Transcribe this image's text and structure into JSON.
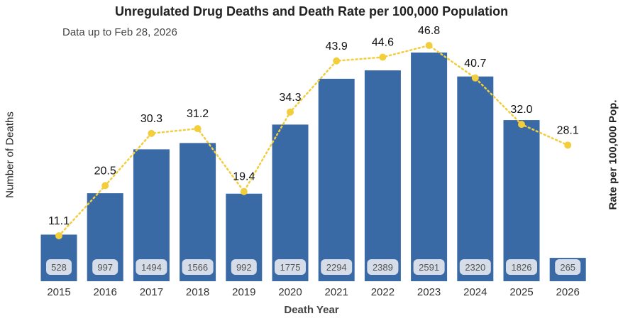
{
  "chart_data": {
    "type": "bar",
    "title": "Unregulated Drug Deaths and Death Rate per 100,000 Population",
    "subtitle": "Data up to Feb 28, 2026",
    "xlabel": "Death Year",
    "ylabel": "Number of Deaths",
    "y2label": "Rate per 100,000 Pop.",
    "categories": [
      "2015",
      "2016",
      "2017",
      "2018",
      "2019",
      "2020",
      "2021",
      "2022",
      "2023",
      "2024",
      "2025",
      "2026"
    ],
    "series": [
      {
        "name": "Number of Deaths",
        "type": "bar",
        "color": "#3a6aa5",
        "values": [
          528,
          997,
          1494,
          1566,
          992,
          1775,
          2294,
          2389,
          2591,
          2320,
          1826,
          265
        ]
      },
      {
        "name": "Rate per 100,000 Pop.",
        "type": "line",
        "color": "#f2cd3c",
        "style": "dotted",
        "values": [
          11.1,
          20.5,
          30.3,
          31.2,
          19.4,
          34.3,
          43.9,
          44.6,
          46.8,
          40.7,
          32.0,
          28.1
        ]
      }
    ],
    "ylim": [
      0,
      2800
    ],
    "y2lim": [
      0,
      52
    ],
    "grid": false,
    "legend": "none"
  }
}
